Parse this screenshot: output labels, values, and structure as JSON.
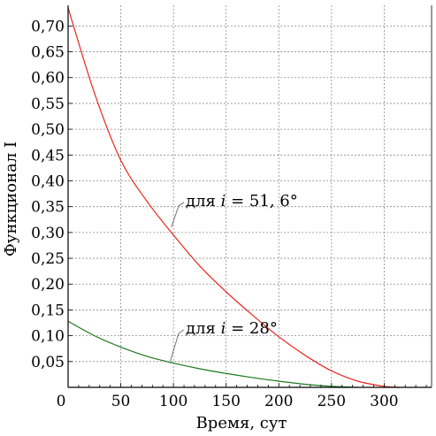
{
  "chart_data": {
    "type": "line",
    "xlabel": "Время, сут",
    "ylabel": "Функционал I",
    "xlim": [
      0,
      345
    ],
    "ylim": [
      0,
      0.74
    ],
    "x_ticks": [
      "0",
      "50",
      "100",
      "150",
      "200",
      "250",
      "300"
    ],
    "x_tick_values": [
      0,
      50,
      100,
      150,
      200,
      250,
      300
    ],
    "y_ticks": [
      "0,05",
      "0,10",
      "0,15",
      "0,20",
      "0,25",
      "0,30",
      "0,35",
      "0,40",
      "0,45",
      "0,50",
      "0,55",
      "0,60",
      "0,65",
      "0,70"
    ],
    "y_tick_values": [
      0.05,
      0.1,
      0.15,
      0.2,
      0.25,
      0.3,
      0.35,
      0.4,
      0.45,
      0.5,
      0.55,
      0.6,
      0.65,
      0.7
    ],
    "grid": true,
    "series": [
      {
        "color": "#e8281e",
        "x": [
          0,
          25,
          50,
          75,
          100,
          125,
          150,
          175,
          200,
          225,
          250,
          275,
          300,
          315
        ],
        "y": [
          0.735,
          0.57,
          0.44,
          0.36,
          0.295,
          0.235,
          0.185,
          0.14,
          0.098,
          0.062,
          0.032,
          0.012,
          0.002,
          0.0
        ]
      },
      {
        "color": "#1e7a1e",
        "x": [
          0,
          25,
          50,
          75,
          100,
          125,
          150,
          175,
          200,
          225,
          250,
          275
        ],
        "y": [
          0.128,
          0.1,
          0.078,
          0.06,
          0.047,
          0.036,
          0.027,
          0.019,
          0.012,
          0.006,
          0.002,
          0.0
        ]
      }
    ],
    "annotations": [
      {
        "text_prefix": "для ",
        "text_var": "i",
        "text_suffix": " = 51, 6°",
        "target_x": 98,
        "target_y": 0.31,
        "label_x": 110,
        "label_y": 0.355
      },
      {
        "text_prefix": "для ",
        "text_var": "i",
        "text_suffix": " = 28°",
        "target_x": 97,
        "target_y": 0.051,
        "label_x": 110,
        "label_y": 0.108
      }
    ]
  }
}
